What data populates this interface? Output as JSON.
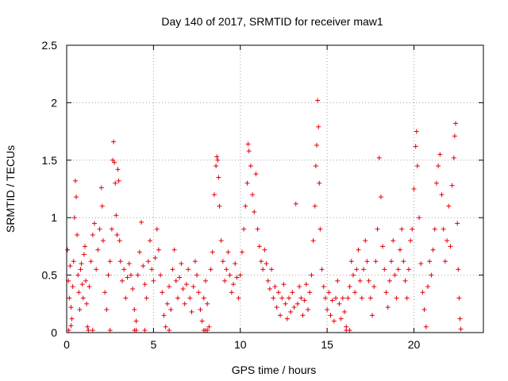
{
  "chart_data": {
    "type": "scatter",
    "title": "Day 140 of 2017, SRMTID for receiver maw1",
    "xlabel": "GPS time / hours",
    "ylabel": "SRMTID / TECUs",
    "xlim": [
      0,
      24
    ],
    "ylim": [
      0,
      2.5
    ],
    "x_ticks": [
      0,
      5,
      10,
      15,
      20
    ],
    "x_tick_labels": [
      "0",
      "5",
      "10",
      "15",
      "20"
    ],
    "y_ticks": [
      0,
      0.5,
      1,
      1.5,
      2,
      2.5
    ],
    "y_tick_labels": [
      "0",
      "0.5",
      "1",
      "1.5",
      "2",
      "2.5"
    ],
    "grid": true,
    "marker": "+",
    "color": "#e0000a",
    "series": [
      {
        "name": "maw1",
        "points": [
          [
            0.05,
            0.72
          ],
          [
            0.1,
            0.45
          ],
          [
            0.15,
            0.3
          ],
          [
            0.2,
            0.58
          ],
          [
            0.25,
            0.22
          ],
          [
            0.3,
            0.12
          ],
          [
            0.35,
            0.4
          ],
          [
            0.4,
            0.62
          ],
          [
            0.45,
            1.0
          ],
          [
            0.5,
            1.32
          ],
          [
            0.55,
            1.18
          ],
          [
            0.6,
            0.85
          ],
          [
            0.65,
            0.5
          ],
          [
            0.7,
            0.35
          ],
          [
            0.75,
            0.2
          ],
          [
            0.8,
            0.55
          ],
          [
            0.85,
            0.6
          ],
          [
            0.9,
            0.42
          ],
          [
            0.95,
            0.3
          ],
          [
            1.0,
            0.68
          ],
          [
            1.05,
            0.75
          ],
          [
            1.1,
            0.45
          ],
          [
            1.15,
            0.25
          ],
          [
            1.2,
            0.05
          ],
          [
            1.3,
            0.4
          ],
          [
            1.4,
            0.62
          ],
          [
            1.5,
            0.85
          ],
          [
            1.6,
            0.95
          ],
          [
            1.7,
            0.55
          ],
          [
            1.8,
            0.72
          ],
          [
            1.9,
            0.9
          ],
          [
            2.0,
            1.26
          ],
          [
            2.05,
            1.1
          ],
          [
            2.1,
            0.8
          ],
          [
            2.2,
            0.35
          ],
          [
            2.3,
            0.2
          ],
          [
            2.4,
            0.5
          ],
          [
            2.5,
            0.62
          ],
          [
            2.6,
            0.9
          ],
          [
            2.65,
            1.5
          ],
          [
            2.7,
            1.66
          ],
          [
            2.75,
            1.48
          ],
          [
            2.8,
            1.3
          ],
          [
            2.85,
            1.02
          ],
          [
            2.9,
            0.85
          ],
          [
            2.95,
            1.42
          ],
          [
            3.0,
            1.32
          ],
          [
            3.05,
            0.8
          ],
          [
            3.1,
            0.62
          ],
          [
            3.2,
            0.45
          ],
          [
            3.3,
            0.55
          ],
          [
            3.4,
            0.3
          ],
          [
            3.5,
            0.48
          ],
          [
            3.6,
            0.6
          ],
          [
            3.7,
            0.5
          ],
          [
            3.8,
            0.38
          ],
          [
            3.9,
            0.2
          ],
          [
            4.0,
            0.1
          ],
          [
            4.1,
            0.5
          ],
          [
            4.2,
            0.7
          ],
          [
            4.3,
            0.96
          ],
          [
            4.4,
            0.58
          ],
          [
            4.5,
            0.42
          ],
          [
            4.6,
            0.3
          ],
          [
            4.7,
            0.62
          ],
          [
            4.8,
            0.8
          ],
          [
            4.9,
            0.55
          ],
          [
            5.0,
            0.45
          ],
          [
            5.1,
            0.65
          ],
          [
            5.2,
            0.9
          ],
          [
            5.3,
            0.72
          ],
          [
            5.4,
            0.5
          ],
          [
            5.5,
            0.35
          ],
          [
            5.6,
            0.15
          ],
          [
            5.7,
            0.05
          ],
          [
            5.8,
            0.25
          ],
          [
            5.9,
            0.4
          ],
          [
            6.0,
            0.2
          ],
          [
            6.1,
            0.55
          ],
          [
            6.2,
            0.72
          ],
          [
            6.3,
            0.45
          ],
          [
            6.4,
            0.3
          ],
          [
            6.5,
            0.48
          ],
          [
            6.6,
            0.6
          ],
          [
            6.7,
            0.38
          ],
          [
            6.8,
            0.25
          ],
          [
            6.9,
            0.42
          ],
          [
            7.0,
            0.55
          ],
          [
            7.1,
            0.3
          ],
          [
            7.2,
            0.18
          ],
          [
            7.3,
            0.4
          ],
          [
            7.4,
            0.62
          ],
          [
            7.5,
            0.5
          ],
          [
            7.6,
            0.35
          ],
          [
            7.7,
            0.2
          ],
          [
            7.8,
            0.1
          ],
          [
            7.9,
            0.3
          ],
          [
            8.0,
            0.45
          ],
          [
            8.1,
            0.25
          ],
          [
            8.2,
            0.05
          ],
          [
            8.3,
            0.55
          ],
          [
            8.4,
            0.7
          ],
          [
            8.5,
            1.2
          ],
          [
            8.6,
            1.45
          ],
          [
            8.65,
            1.53
          ],
          [
            8.7,
            1.5
          ],
          [
            8.75,
            1.35
          ],
          [
            8.8,
            1.1
          ],
          [
            8.9,
            0.8
          ],
          [
            9.0,
            0.62
          ],
          [
            9.1,
            0.45
          ],
          [
            9.2,
            0.55
          ],
          [
            9.3,
            0.7
          ],
          [
            9.4,
            0.5
          ],
          [
            9.5,
            0.35
          ],
          [
            9.6,
            0.42
          ],
          [
            9.7,
            0.6
          ],
          [
            9.8,
            0.48
          ],
          [
            9.9,
            0.3
          ],
          [
            10.0,
            0.5
          ],
          [
            10.1,
            0.7
          ],
          [
            10.2,
            0.9
          ],
          [
            10.3,
            1.1
          ],
          [
            10.4,
            1.3
          ],
          [
            10.45,
            1.64
          ],
          [
            10.5,
            1.58
          ],
          [
            10.6,
            1.45
          ],
          [
            10.7,
            1.2
          ],
          [
            10.8,
            1.05
          ],
          [
            10.9,
            1.38
          ],
          [
            11.0,
            0.9
          ],
          [
            11.1,
            0.75
          ],
          [
            11.2,
            0.62
          ],
          [
            11.3,
            0.55
          ],
          [
            11.4,
            0.72
          ],
          [
            11.5,
            0.6
          ],
          [
            11.6,
            0.45
          ],
          [
            11.7,
            0.38
          ],
          [
            11.8,
            0.55
          ],
          [
            11.9,
            0.3
          ],
          [
            12.0,
            0.4
          ],
          [
            12.1,
            0.22
          ],
          [
            12.2,
            0.35
          ],
          [
            12.3,
            0.15
          ],
          [
            12.4,
            0.3
          ],
          [
            12.5,
            0.42
          ],
          [
            12.6,
            0.25
          ],
          [
            12.7,
            0.12
          ],
          [
            12.8,
            0.3
          ],
          [
            12.9,
            0.18
          ],
          [
            13.0,
            0.35
          ],
          [
            13.1,
            0.22
          ],
          [
            13.2,
            1.12
          ],
          [
            13.3,
            0.25
          ],
          [
            13.4,
            0.4
          ],
          [
            13.5,
            0.3
          ],
          [
            13.6,
            0.15
          ],
          [
            13.7,
            0.28
          ],
          [
            13.8,
            0.42
          ],
          [
            13.9,
            0.2
          ],
          [
            14.0,
            0.35
          ],
          [
            14.1,
            0.5
          ],
          [
            14.2,
            0.8
          ],
          [
            14.3,
            1.1
          ],
          [
            14.35,
            1.45
          ],
          [
            14.4,
            1.63
          ],
          [
            14.45,
            2.02
          ],
          [
            14.5,
            1.79
          ],
          [
            14.55,
            1.3
          ],
          [
            14.6,
            0.9
          ],
          [
            14.7,
            0.55
          ],
          [
            14.8,
            0.4
          ],
          [
            14.9,
            0.3
          ],
          [
            15.0,
            0.2
          ],
          [
            15.1,
            0.35
          ],
          [
            15.2,
            0.15
          ],
          [
            15.3,
            0.28
          ],
          [
            15.4,
            0.1
          ],
          [
            15.5,
            0.3
          ],
          [
            15.6,
            0.45
          ],
          [
            15.7,
            0.25
          ],
          [
            15.8,
            0.12
          ],
          [
            15.9,
            0.3
          ],
          [
            16.0,
            0.18
          ],
          [
            16.1,
            0.05
          ],
          [
            16.2,
            0.3
          ],
          [
            16.3,
            0.4
          ],
          [
            16.4,
            0.62
          ],
          [
            16.5,
            0.5
          ],
          [
            16.6,
            0.35
          ],
          [
            16.7,
            0.55
          ],
          [
            16.8,
            0.72
          ],
          [
            16.9,
            0.45
          ],
          [
            17.0,
            0.3
          ],
          [
            17.1,
            0.55
          ],
          [
            17.2,
            0.8
          ],
          [
            17.3,
            0.62
          ],
          [
            17.4,
            0.45
          ],
          [
            17.5,
            0.3
          ],
          [
            17.6,
            0.15
          ],
          [
            17.7,
            0.4
          ],
          [
            17.8,
            0.62
          ],
          [
            17.9,
            0.9
          ],
          [
            18.0,
            1.52
          ],
          [
            18.1,
            1.18
          ],
          [
            18.2,
            0.75
          ],
          [
            18.3,
            0.55
          ],
          [
            18.4,
            0.35
          ],
          [
            18.5,
            0.22
          ],
          [
            18.6,
            0.45
          ],
          [
            18.7,
            0.62
          ],
          [
            18.8,
            0.8
          ],
          [
            18.9,
            0.5
          ],
          [
            19.0,
            0.3
          ],
          [
            19.1,
            0.55
          ],
          [
            19.2,
            0.72
          ],
          [
            19.3,
            0.9
          ],
          [
            19.4,
            0.62
          ],
          [
            19.5,
            0.45
          ],
          [
            19.6,
            0.3
          ],
          [
            19.7,
            0.55
          ],
          [
            19.8,
            0.8
          ],
          [
            19.9,
            0.9
          ],
          [
            20.0,
            1.25
          ],
          [
            20.1,
            1.62
          ],
          [
            20.15,
            1.75
          ],
          [
            20.2,
            1.45
          ],
          [
            20.3,
            1.0
          ],
          [
            20.4,
            0.6
          ],
          [
            20.5,
            0.35
          ],
          [
            20.6,
            0.2
          ],
          [
            20.7,
            0.05
          ],
          [
            20.8,
            0.4
          ],
          [
            20.9,
            0.62
          ],
          [
            21.0,
            0.5
          ],
          [
            21.1,
            0.72
          ],
          [
            21.2,
            0.9
          ],
          [
            21.3,
            1.3
          ],
          [
            21.4,
            1.45
          ],
          [
            21.5,
            1.55
          ],
          [
            21.6,
            1.2
          ],
          [
            21.7,
            0.9
          ],
          [
            21.8,
            0.62
          ],
          [
            21.9,
            0.8
          ],
          [
            22.0,
            1.1
          ],
          [
            22.1,
            0.75
          ],
          [
            22.2,
            1.28
          ],
          [
            22.3,
            1.52
          ],
          [
            22.35,
            1.71
          ],
          [
            22.4,
            1.82
          ],
          [
            22.5,
            0.95
          ],
          [
            22.55,
            0.55
          ],
          [
            22.6,
            0.3
          ],
          [
            22.65,
            0.12
          ],
          [
            22.7,
            0.03
          ],
          [
            0.12,
            0.02
          ],
          [
            0.25,
            0.06
          ],
          [
            1.25,
            0.02
          ],
          [
            1.5,
            0.02
          ],
          [
            2.5,
            0.02
          ],
          [
            3.9,
            0.02
          ],
          [
            4.0,
            0.02
          ],
          [
            4.5,
            0.02
          ],
          [
            5.9,
            0.02
          ],
          [
            7.9,
            0.02
          ],
          [
            8.0,
            0.02
          ],
          [
            8.1,
            0.02
          ],
          [
            16.1,
            0.02
          ],
          [
            16.3,
            0.02
          ]
        ]
      }
    ]
  }
}
